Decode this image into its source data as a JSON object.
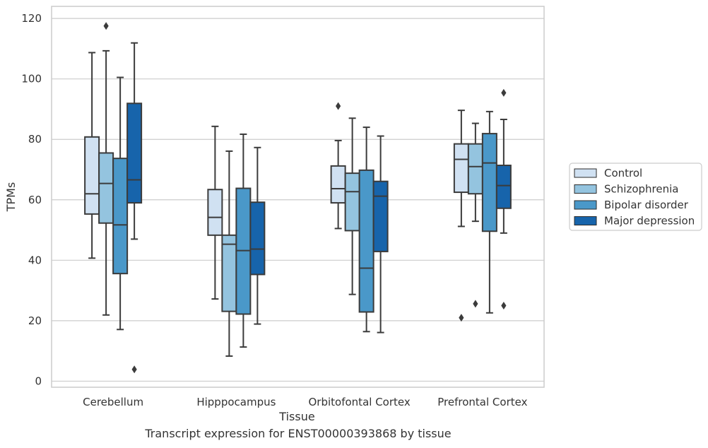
{
  "caption": "Transcript expression for ENST00000393868 by tissue",
  "chart_data": {
    "type": "box",
    "title": "",
    "xlabel": "Tissue",
    "ylabel": "TPMs",
    "ylim": [
      -2,
      124
    ],
    "yticks": [
      0,
      20,
      40,
      60,
      80,
      100,
      120
    ],
    "grid": "horizontal",
    "legend_position": "right",
    "categories": [
      "Cerebellum",
      "Hipppocampus",
      "Orbitofontal Cortex",
      "Prefrontal Cortex"
    ],
    "series": [
      {
        "name": "Control",
        "color": "#d0e1f2",
        "boxes": [
          {
            "whisker_low": 40.7,
            "q1": 55.3,
            "median": 62,
            "q3": 80.8,
            "whisker_high": 108.7,
            "outliers": []
          },
          {
            "whisker_low": 27.2,
            "q1": 48.3,
            "median": 54.2,
            "q3": 63.4,
            "whisker_high": 84.3,
            "outliers": []
          },
          {
            "whisker_low": 50.5,
            "q1": 59,
            "median": 63.7,
            "q3": 71.2,
            "whisker_high": 79.6,
            "outliers": [
              91
            ]
          },
          {
            "whisker_low": 51.2,
            "q1": 62.5,
            "median": 73.4,
            "q3": 78.5,
            "whisker_high": 89.6,
            "outliers": [
              21
            ]
          }
        ]
      },
      {
        "name": "Schizophrenia",
        "color": "#94c4df",
        "boxes": [
          {
            "whisker_low": 21.9,
            "q1": 52.3,
            "median": 65.4,
            "q3": 75.5,
            "whisker_high": 109.3,
            "outliers": [
              117.5
            ]
          },
          {
            "whisker_low": 8.3,
            "q1": 23.1,
            "median": 45.3,
            "q3": 48.3,
            "whisker_high": 76.1,
            "outliers": []
          },
          {
            "whisker_low": 28.7,
            "q1": 49.8,
            "median": 62.7,
            "q3": 68.8,
            "whisker_high": 87,
            "outliers": []
          },
          {
            "whisker_low": 52.9,
            "q1": 62,
            "median": 71,
            "q3": 78.5,
            "whisker_high": 85.3,
            "outliers": [
              25.6
            ]
          }
        ]
      },
      {
        "name": "Bipolar disorder",
        "color": "#4a98c9",
        "boxes": [
          {
            "whisker_low": 17.1,
            "q1": 35.6,
            "median": 51.7,
            "q3": 73.7,
            "whisker_high": 100.5,
            "outliers": []
          },
          {
            "whisker_low": 11.3,
            "q1": 22.2,
            "median": 43.2,
            "q3": 63.8,
            "whisker_high": 81.7,
            "outliers": []
          },
          {
            "whisker_low": 16.4,
            "q1": 22.9,
            "median": 37.4,
            "q3": 69.8,
            "whisker_high": 84,
            "outliers": []
          },
          {
            "whisker_low": 22.6,
            "q1": 49.6,
            "median": 72.2,
            "q3": 81.9,
            "whisker_high": 89.2,
            "outliers": []
          }
        ]
      },
      {
        "name": "Major depression",
        "color": "#1764ab",
        "boxes": [
          {
            "whisker_low": 47,
            "q1": 59,
            "median": 66.6,
            "q3": 91.9,
            "whisker_high": 111.9,
            "outliers": [
              3.9
            ]
          },
          {
            "whisker_low": 18.9,
            "q1": 35.3,
            "median": 43.7,
            "q3": 59.2,
            "whisker_high": 77.3,
            "outliers": []
          },
          {
            "whisker_low": 16.1,
            "q1": 42.9,
            "median": 61.2,
            "q3": 66.1,
            "whisker_high": 81.1,
            "outliers": []
          },
          {
            "whisker_low": 49,
            "q1": 57.2,
            "median": 64.7,
            "q3": 71.4,
            "whisker_high": 86.6,
            "outliers": [
              95.4,
              25
            ]
          }
        ]
      }
    ]
  }
}
